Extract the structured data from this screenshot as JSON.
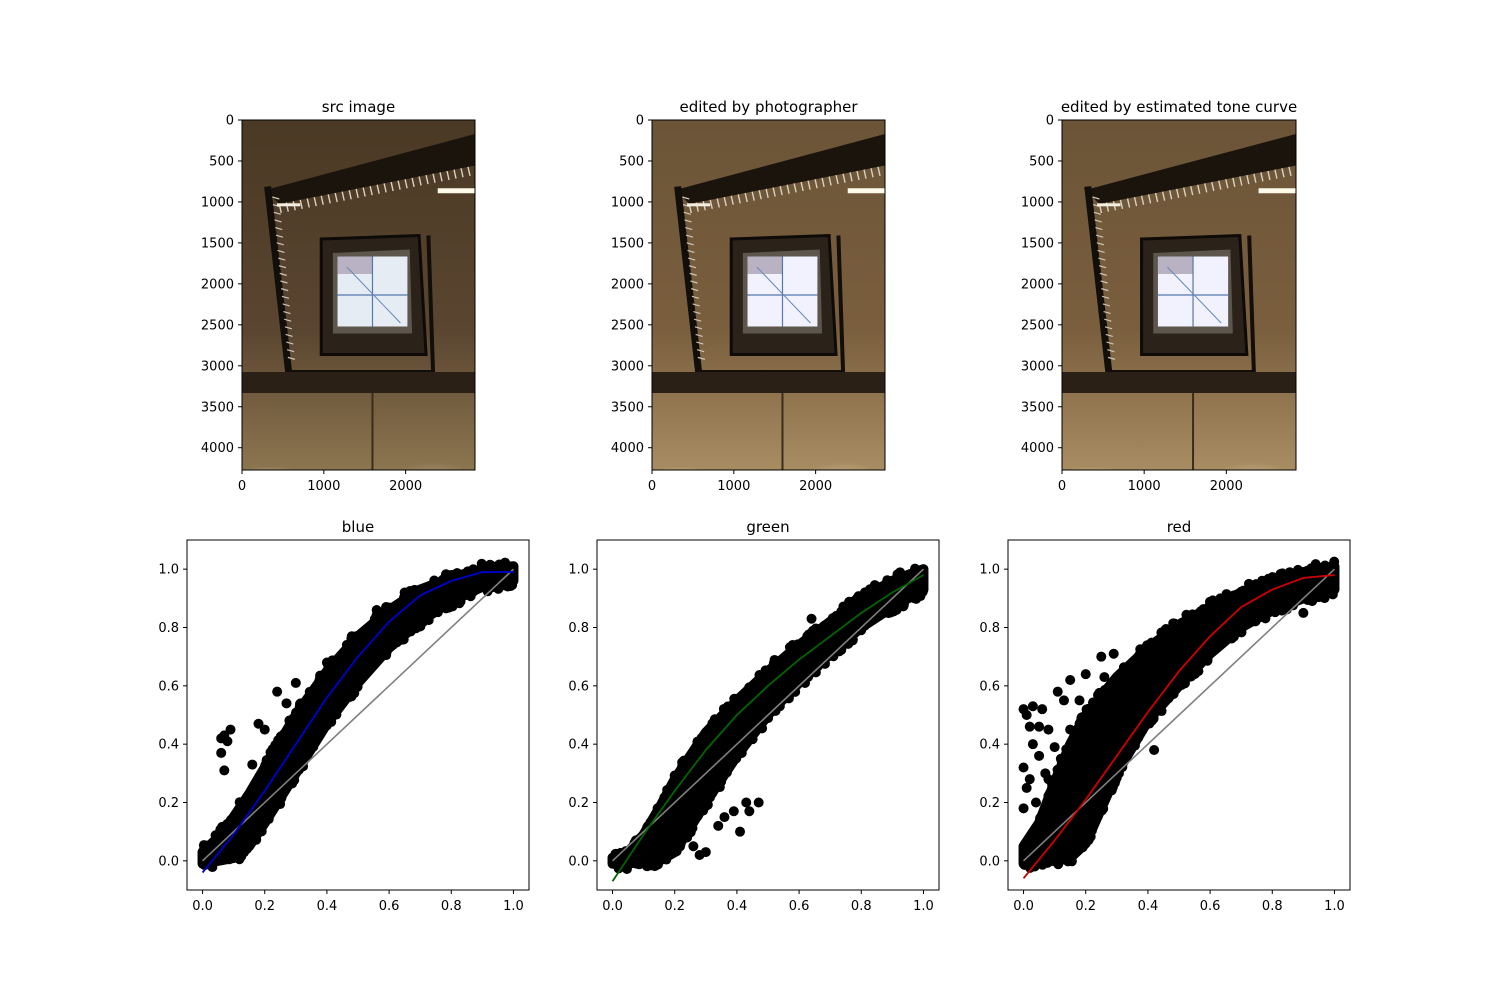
{
  "figure": {
    "background": "#ffffff",
    "axis_color": "#000000"
  },
  "image_panels": [
    {
      "title": "src image",
      "xticks": [
        0,
        1000,
        2000
      ],
      "yticks": [
        0,
        500,
        1000,
        1500,
        2000,
        2500,
        3000,
        3500,
        4000
      ],
      "xlim": [
        0,
        2848
      ],
      "ylim": [
        4272,
        0
      ],
      "image_subject": "looking up a rectangular spiral staircase toward a skylight",
      "tone": "warm-dark"
    },
    {
      "title": "edited by photographer",
      "xticks": [
        0,
        1000,
        2000
      ],
      "yticks": [
        0,
        500,
        1000,
        1500,
        2000,
        2500,
        3000,
        3500,
        4000
      ],
      "xlim": [
        0,
        2848
      ],
      "ylim": [
        4272,
        0
      ],
      "image_subject": "looking up a rectangular spiral staircase toward a skylight",
      "tone": "warm-bright"
    },
    {
      "title": "edited by estimated tone curve",
      "xticks": [
        0,
        1000,
        2000
      ],
      "yticks": [
        0,
        500,
        1000,
        1500,
        2000,
        2500,
        3000,
        3500,
        4000
      ],
      "xlim": [
        0,
        2848
      ],
      "ylim": [
        4272,
        0
      ],
      "image_subject": "looking up a rectangular spiral staircase toward a skylight",
      "tone": "warm-bright"
    }
  ],
  "chart_data": [
    {
      "type": "scatter",
      "title": "blue",
      "xlabel": "",
      "ylabel": "",
      "xlim": [
        -0.05,
        1.05
      ],
      "ylim": [
        -0.1,
        1.1
      ],
      "xticks": [
        "0.0",
        "0.2",
        "0.4",
        "0.6",
        "0.8",
        "1.0"
      ],
      "yticks": [
        "0.0",
        "0.2",
        "0.4",
        "0.6",
        "0.8",
        "1.0"
      ],
      "grid": false,
      "point_color": "#000000",
      "fit_color": "#0000cc",
      "identity_color": "#808080",
      "fit_curve": {
        "x": [
          0.0,
          0.1,
          0.2,
          0.3,
          0.4,
          0.5,
          0.6,
          0.7,
          0.8,
          0.9,
          1.0
        ],
        "y": [
          -0.04,
          0.09,
          0.24,
          0.4,
          0.56,
          0.7,
          0.82,
          0.91,
          0.96,
          0.99,
          0.99
        ]
      },
      "identity_line": {
        "x": [
          0,
          1
        ],
        "y": [
          0,
          1
        ]
      },
      "band_upper": {
        "x": [
          0.0,
          0.05,
          0.1,
          0.15,
          0.2,
          0.3,
          0.4,
          0.5,
          0.6,
          0.7,
          0.8,
          0.9,
          1.0
        ],
        "y": [
          0.03,
          0.08,
          0.15,
          0.23,
          0.32,
          0.5,
          0.65,
          0.77,
          0.86,
          0.93,
          0.97,
          1.0,
          1.01
        ]
      },
      "band_lower": {
        "x": [
          0.0,
          0.05,
          0.1,
          0.15,
          0.2,
          0.3,
          0.4,
          0.5,
          0.6,
          0.7,
          0.8,
          0.9,
          1.0
        ],
        "y": [
          -0.01,
          0.0,
          0.01,
          0.05,
          0.13,
          0.3,
          0.47,
          0.61,
          0.73,
          0.82,
          0.89,
          0.94,
          0.96
        ]
      },
      "outliers": [
        [
          0.06,
          0.42
        ],
        [
          0.07,
          0.43
        ],
        [
          0.09,
          0.45
        ],
        [
          0.08,
          0.41
        ],
        [
          0.06,
          0.37
        ],
        [
          0.07,
          0.31
        ],
        [
          0.18,
          0.47
        ],
        [
          0.2,
          0.45
        ],
        [
          0.24,
          0.58
        ],
        [
          0.3,
          0.61
        ],
        [
          0.27,
          0.54
        ],
        [
          0.16,
          0.33
        ],
        [
          0.4,
          0.68
        ],
        [
          0.48,
          0.77
        ],
        [
          0.56,
          0.86
        ],
        [
          0.65,
          0.92
        ]
      ]
    },
    {
      "type": "scatter",
      "title": "green",
      "xlabel": "",
      "ylabel": "",
      "xlim": [
        -0.05,
        1.05
      ],
      "ylim": [
        -0.1,
        1.1
      ],
      "xticks": [
        "0.0",
        "0.2",
        "0.4",
        "0.6",
        "0.8",
        "1.0"
      ],
      "yticks": [
        "0.0",
        "0.2",
        "0.4",
        "0.6",
        "0.8",
        "1.0"
      ],
      "grid": false,
      "point_color": "#000000",
      "fit_color": "#006400",
      "identity_color": "#808080",
      "fit_curve": {
        "x": [
          0.0,
          0.1,
          0.2,
          0.3,
          0.4,
          0.5,
          0.6,
          0.7,
          0.8,
          0.9,
          1.0
        ],
        "y": [
          -0.07,
          0.09,
          0.24,
          0.38,
          0.5,
          0.6,
          0.69,
          0.77,
          0.85,
          0.92,
          0.98
        ]
      },
      "identity_line": {
        "x": [
          0,
          1
        ],
        "y": [
          0,
          1
        ]
      },
      "band_upper": {
        "x": [
          0.0,
          0.05,
          0.1,
          0.15,
          0.2,
          0.3,
          0.4,
          0.5,
          0.6,
          0.7,
          0.8,
          0.9,
          1.0
        ],
        "y": [
          0.01,
          0.03,
          0.09,
          0.18,
          0.28,
          0.44,
          0.55,
          0.65,
          0.74,
          0.82,
          0.9,
          0.96,
          1.0
        ]
      },
      "band_lower": {
        "x": [
          0.0,
          0.05,
          0.1,
          0.15,
          0.2,
          0.3,
          0.4,
          0.5,
          0.6,
          0.7,
          0.8,
          0.9,
          1.0
        ],
        "y": [
          -0.01,
          -0.01,
          0.0,
          0.0,
          0.03,
          0.2,
          0.36,
          0.5,
          0.61,
          0.71,
          0.8,
          0.87,
          0.93
        ]
      },
      "outliers": [
        [
          0.22,
          0.12
        ],
        [
          0.24,
          0.08
        ],
        [
          0.26,
          0.05
        ],
        [
          0.28,
          0.02
        ],
        [
          0.3,
          0.03
        ],
        [
          0.34,
          0.12
        ],
        [
          0.39,
          0.17
        ],
        [
          0.41,
          0.1
        ],
        [
          0.43,
          0.2
        ],
        [
          0.47,
          0.2
        ],
        [
          0.44,
          0.17
        ],
        [
          0.2,
          0.06
        ],
        [
          0.36,
          0.15
        ],
        [
          0.64,
          0.83
        ],
        [
          0.72,
          0.84
        ]
      ]
    },
    {
      "type": "scatter",
      "title": "red",
      "xlabel": "",
      "ylabel": "",
      "xlim": [
        -0.05,
        1.05
      ],
      "ylim": [
        -0.1,
        1.1
      ],
      "xticks": [
        "0.0",
        "0.2",
        "0.4",
        "0.6",
        "0.8",
        "1.0"
      ],
      "yticks": [
        "0.0",
        "0.2",
        "0.4",
        "0.6",
        "0.8",
        "1.0"
      ],
      "grid": false,
      "point_color": "#000000",
      "fit_color": "#cc0000",
      "identity_color": "#808080",
      "fit_curve": {
        "x": [
          0.0,
          0.1,
          0.2,
          0.3,
          0.4,
          0.5,
          0.6,
          0.7,
          0.8,
          0.9,
          1.0
        ],
        "y": [
          -0.06,
          0.07,
          0.21,
          0.36,
          0.51,
          0.65,
          0.77,
          0.87,
          0.93,
          0.97,
          0.98
        ]
      },
      "identity_line": {
        "x": [
          0,
          1
        ],
        "y": [
          0,
          1
        ]
      },
      "band_upper": {
        "x": [
          0.0,
          0.05,
          0.1,
          0.15,
          0.2,
          0.3,
          0.4,
          0.5,
          0.6,
          0.7,
          0.8,
          0.9,
          1.0
        ],
        "y": [
          0.05,
          0.13,
          0.27,
          0.4,
          0.5,
          0.63,
          0.73,
          0.81,
          0.87,
          0.92,
          0.96,
          0.99,
          1.01
        ]
      },
      "band_lower": {
        "x": [
          0.0,
          0.05,
          0.1,
          0.15,
          0.2,
          0.3,
          0.4,
          0.5,
          0.6,
          0.7,
          0.8,
          0.9,
          1.0
        ],
        "y": [
          -0.01,
          0.0,
          0.0,
          0.01,
          0.06,
          0.3,
          0.48,
          0.6,
          0.71,
          0.8,
          0.86,
          0.9,
          0.93
        ]
      },
      "outliers": [
        [
          0.0,
          0.52
        ],
        [
          0.01,
          0.5
        ],
        [
          0.02,
          0.46
        ],
        [
          0.0,
          0.32
        ],
        [
          0.01,
          0.25
        ],
        [
          0.0,
          0.18
        ],
        [
          0.03,
          0.4
        ],
        [
          0.05,
          0.36
        ],
        [
          0.06,
          0.52
        ],
        [
          0.05,
          0.46
        ],
        [
          0.08,
          0.45
        ],
        [
          0.1,
          0.39
        ],
        [
          0.12,
          0.35
        ],
        [
          0.13,
          0.55
        ],
        [
          0.15,
          0.62
        ],
        [
          0.1,
          0.22
        ],
        [
          0.08,
          0.28
        ],
        [
          0.07,
          0.3
        ],
        [
          0.11,
          0.58
        ],
        [
          0.15,
          0.45
        ],
        [
          0.18,
          0.55
        ],
        [
          0.2,
          0.64
        ],
        [
          0.25,
          0.7
        ],
        [
          0.29,
          0.71
        ],
        [
          0.26,
          0.63
        ],
        [
          0.04,
          0.2
        ],
        [
          0.02,
          0.28
        ],
        [
          0.03,
          0.53
        ],
        [
          0.17,
          0.44
        ],
        [
          0.42,
          0.38
        ],
        [
          0.63,
          0.87
        ],
        [
          0.83,
          0.9
        ],
        [
          0.9,
          0.85
        ]
      ]
    }
  ]
}
